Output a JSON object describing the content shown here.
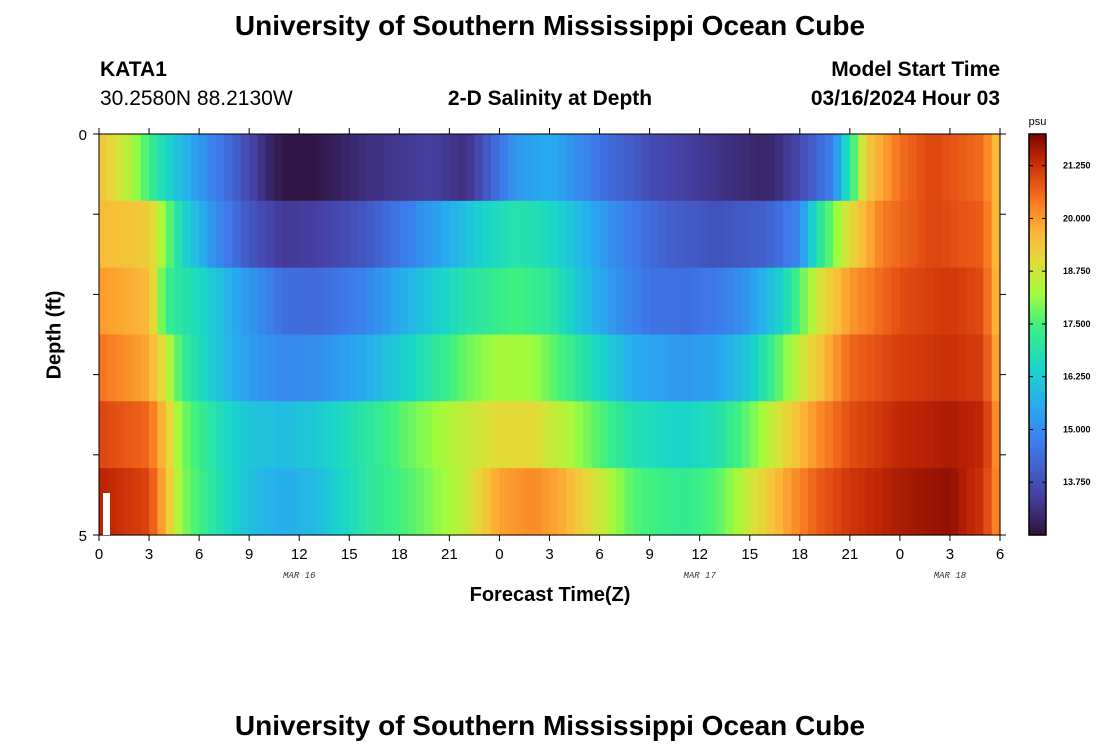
{
  "page": {
    "title": "University of Southern Mississippi Ocean Cube",
    "footer_title": "University of Southern Mississippi Ocean Cube",
    "station": "KATA1",
    "coords": "30.2580N  88.2130W",
    "subtitle": "2-D Salinity at Depth",
    "model_start_label": "Model Start Time",
    "model_start_value": "03/16/2024 Hour 03"
  },
  "chart_data": {
    "type": "heatmap",
    "title": "2-D Salinity at Depth",
    "xlabel": "Forecast Time(Z)",
    "ylabel": "Depth (ft)",
    "x_range_hours": [
      0,
      54
    ],
    "y_range": [
      0,
      5
    ],
    "y_ticks": [
      "0",
      "5"
    ],
    "x_ticks": [
      {
        "h": 0,
        "label": "0"
      },
      {
        "h": 3,
        "label": "3"
      },
      {
        "h": 6,
        "label": "6"
      },
      {
        "h": 9,
        "label": "9"
      },
      {
        "h": 12,
        "label": "12"
      },
      {
        "h": 15,
        "label": "15"
      },
      {
        "h": 18,
        "label": "18"
      },
      {
        "h": 21,
        "label": "21"
      },
      {
        "h": 24,
        "label": "0"
      },
      {
        "h": 27,
        "label": "3"
      },
      {
        "h": 30,
        "label": "6"
      },
      {
        "h": 33,
        "label": "9"
      },
      {
        "h": 36,
        "label": "12"
      },
      {
        "h": 39,
        "label": "15"
      },
      {
        "h": 42,
        "label": "18"
      },
      {
        "h": 45,
        "label": "21"
      },
      {
        "h": 48,
        "label": "0"
      },
      {
        "h": 51,
        "label": "3"
      },
      {
        "h": 54,
        "label": "6"
      }
    ],
    "date_labels": [
      {
        "h": 12,
        "label": "MAR 16"
      },
      {
        "h": 36,
        "label": "MAR 17"
      },
      {
        "h": 51,
        "label": "MAR 18"
      }
    ],
    "colorbar": {
      "unit": "psu",
      "vmin": 12.5,
      "vmax": 22.0,
      "ticks": [
        21.25,
        20.0,
        18.75,
        17.5,
        16.25,
        15.0,
        13.75
      ],
      "tick_labels": [
        "21.250",
        "20.000",
        "18.750",
        "17.500",
        "16.250",
        "15.000",
        "13.750"
      ]
    },
    "layers": [
      {
        "depth": 0,
        "keys": [
          [
            0,
            19.5
          ],
          [
            2,
            18.3
          ],
          [
            4,
            16.5
          ],
          [
            6,
            15.2
          ],
          [
            8,
            14.2
          ],
          [
            10,
            13.0
          ],
          [
            11,
            12.6
          ],
          [
            13,
            12.6
          ],
          [
            16,
            13.1
          ],
          [
            20,
            13.4
          ],
          [
            22,
            13.1
          ],
          [
            23,
            13.8
          ],
          [
            25,
            15.2
          ],
          [
            27,
            15.6
          ],
          [
            30,
            14.5
          ],
          [
            33,
            13.7
          ],
          [
            36,
            13.3
          ],
          [
            40,
            12.9
          ],
          [
            41,
            13.2
          ],
          [
            42,
            13.6
          ],
          [
            44,
            14.8
          ],
          [
            45,
            17.0
          ],
          [
            46,
            19.3
          ],
          [
            48,
            20.5
          ],
          [
            50,
            21.0
          ],
          [
            53,
            20.5
          ],
          [
            54,
            19.3
          ]
        ]
      },
      {
        "depth": 1,
        "keys": [
          [
            0,
            19.6
          ],
          [
            3,
            19.3
          ],
          [
            4,
            18.0
          ],
          [
            5,
            16.5
          ],
          [
            7,
            15.0
          ],
          [
            9,
            13.9
          ],
          [
            11,
            13.3
          ],
          [
            13,
            13.4
          ],
          [
            16,
            13.9
          ],
          [
            19,
            14.9
          ],
          [
            22,
            16.0
          ],
          [
            23,
            16.4
          ],
          [
            25,
            16.9
          ],
          [
            27,
            16.6
          ],
          [
            29,
            15.8
          ],
          [
            31,
            14.9
          ],
          [
            34,
            14.1
          ],
          [
            37,
            13.8
          ],
          [
            40,
            14.1
          ],
          [
            42,
            14.9
          ],
          [
            43,
            16.8
          ],
          [
            45,
            19.0
          ],
          [
            47,
            20.4
          ],
          [
            50,
            21.0
          ],
          [
            53,
            20.7
          ],
          [
            54,
            19.3
          ]
        ]
      },
      {
        "depth": 2,
        "keys": [
          [
            0,
            20.0
          ],
          [
            3,
            19.6
          ],
          [
            4,
            17.3
          ],
          [
            6,
            16.6
          ],
          [
            8,
            15.6
          ],
          [
            10,
            14.8
          ],
          [
            11,
            14.4
          ],
          [
            13,
            14.3
          ],
          [
            16,
            14.8
          ],
          [
            19,
            15.9
          ],
          [
            22,
            16.9
          ],
          [
            25,
            17.5
          ],
          [
            27,
            17.1
          ],
          [
            29,
            16.0
          ],
          [
            31,
            15.1
          ],
          [
            33,
            14.5
          ],
          [
            35,
            14.4
          ],
          [
            37,
            14.6
          ],
          [
            39,
            15.2
          ],
          [
            41,
            16.5
          ],
          [
            43,
            18.7
          ],
          [
            45,
            20.0
          ],
          [
            48,
            20.9
          ],
          [
            51,
            21.2
          ],
          [
            53,
            20.9
          ],
          [
            54,
            19.3
          ]
        ]
      },
      {
        "depth": 3,
        "keys": [
          [
            0,
            20.5
          ],
          [
            3,
            19.8
          ],
          [
            4,
            18.7
          ],
          [
            5,
            17.3
          ],
          [
            7,
            16.1
          ],
          [
            9,
            15.3
          ],
          [
            11,
            14.9
          ],
          [
            13,
            15.0
          ],
          [
            16,
            15.6
          ],
          [
            19,
            16.6
          ],
          [
            22,
            17.8
          ],
          [
            24,
            18.3
          ],
          [
            26,
            18.2
          ],
          [
            28,
            17.4
          ],
          [
            30,
            16.5
          ],
          [
            32,
            15.6
          ],
          [
            35,
            15.2
          ],
          [
            37,
            15.4
          ],
          [
            39,
            16.2
          ],
          [
            41,
            17.9
          ],
          [
            43,
            19.3
          ],
          [
            45,
            20.6
          ],
          [
            48,
            21.1
          ],
          [
            51,
            21.3
          ],
          [
            53,
            21.1
          ],
          [
            54,
            19.5
          ]
        ]
      },
      {
        "depth": 4,
        "keys": [
          [
            0,
            21.0
          ],
          [
            3,
            20.6
          ],
          [
            4,
            19.4
          ],
          [
            5,
            17.9
          ],
          [
            7,
            16.8
          ],
          [
            9,
            16.1
          ],
          [
            11,
            15.9
          ],
          [
            13,
            16.2
          ],
          [
            16,
            17.0
          ],
          [
            19,
            17.9
          ],
          [
            22,
            18.6
          ],
          [
            24,
            19.0
          ],
          [
            26,
            19.0
          ],
          [
            28,
            18.4
          ],
          [
            30,
            17.6
          ],
          [
            32,
            16.8
          ],
          [
            35,
            16.4
          ],
          [
            37,
            16.8
          ],
          [
            39,
            17.8
          ],
          [
            41,
            19.0
          ],
          [
            43,
            20.1
          ],
          [
            45,
            20.9
          ],
          [
            48,
            21.4
          ],
          [
            51,
            21.6
          ],
          [
            53,
            21.4
          ],
          [
            54,
            19.8
          ]
        ]
      },
      {
        "depth": 5,
        "keys": [
          [
            0,
            21.5
          ],
          [
            3,
            21.0
          ],
          [
            4,
            19.6
          ],
          [
            5,
            18.0
          ],
          [
            7,
            16.9
          ],
          [
            9,
            16.0
          ],
          [
            11,
            15.6
          ],
          [
            13,
            15.9
          ],
          [
            16,
            17.0
          ],
          [
            19,
            17.7
          ],
          [
            22,
            18.6
          ],
          [
            24,
            19.9
          ],
          [
            26,
            20.2
          ],
          [
            28,
            19.7
          ],
          [
            30,
            18.7
          ],
          [
            32,
            17.6
          ],
          [
            35,
            17.2
          ],
          [
            37,
            17.6
          ],
          [
            39,
            18.7
          ],
          [
            41,
            19.8
          ],
          [
            43,
            20.7
          ],
          [
            45,
            21.2
          ],
          [
            48,
            21.6
          ],
          [
            51,
            21.8
          ],
          [
            53,
            21.2
          ],
          [
            54,
            20.0
          ]
        ]
      }
    ]
  }
}
